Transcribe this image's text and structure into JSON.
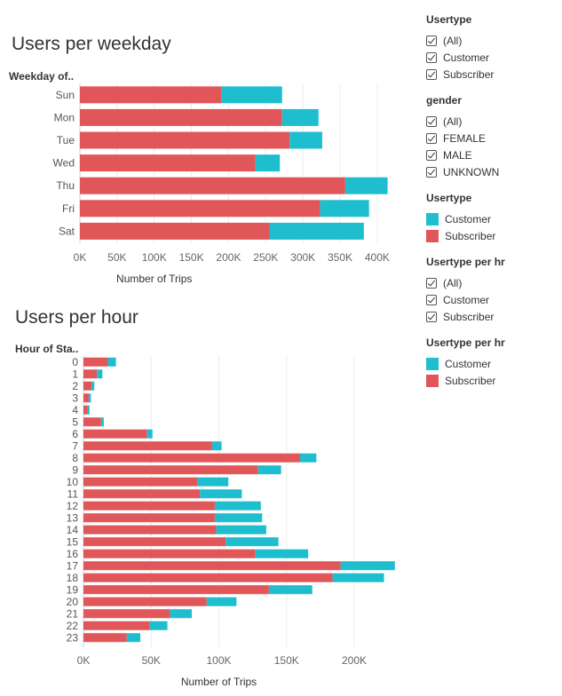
{
  "colors": {
    "subscriber": "#e15759",
    "customer": "#1fbecf",
    "grid": "#ececec",
    "axis": "#666666"
  },
  "legend": [
    {
      "title": "Usertype",
      "kind": "check",
      "items": [
        "(All)",
        "Customer",
        "Subscriber"
      ]
    },
    {
      "title": "gender",
      "kind": "check",
      "items": [
        "(All)",
        "FEMALE",
        "MALE",
        "UNKNOWN"
      ]
    },
    {
      "title": "Usertype",
      "kind": "color",
      "items": [
        {
          "label": "Customer",
          "color": "#1fbecf"
        },
        {
          "label": "Subscriber",
          "color": "#e15759"
        }
      ]
    },
    {
      "title": "Usertype per hr",
      "kind": "check",
      "items": [
        "(All)",
        "Customer",
        "Subscriber"
      ]
    },
    {
      "title": "Usertype per hr",
      "kind": "color",
      "items": [
        {
          "label": "Customer",
          "color": "#1fbecf"
        },
        {
          "label": "Subscriber",
          "color": "#e15759"
        }
      ]
    }
  ],
  "chart_data": [
    {
      "type": "bar",
      "orientation": "horizontal",
      "stacked": true,
      "title": "Users per weekday",
      "row_header": "Weekday of..",
      "xlabel": "Number of Trips",
      "categories": [
        "Sun",
        "Mon",
        "Tue",
        "Wed",
        "Thu",
        "Fri",
        "Sat"
      ],
      "series": [
        {
          "name": "Subscriber",
          "values": [
            190000,
            272000,
            282000,
            236000,
            357000,
            323000,
            255000
          ]
        },
        {
          "name": "Customer",
          "values": [
            82000,
            49000,
            44000,
            33000,
            57000,
            66000,
            127000
          ]
        }
      ],
      "xticks": [
        "0K",
        "50K",
        "100K",
        "150K",
        "200K",
        "250K",
        "300K",
        "350K",
        "400K"
      ],
      "xlim": [
        0,
        430000
      ]
    },
    {
      "type": "bar",
      "orientation": "horizontal",
      "stacked": true,
      "title": "Users per hour",
      "row_header": "Hour of Sta..",
      "xlabel": "Number of Trips",
      "categories": [
        "0",
        "1",
        "2",
        "3",
        "4",
        "5",
        "6",
        "7",
        "8",
        "9",
        "10",
        "11",
        "12",
        "13",
        "14",
        "15",
        "16",
        "17",
        "18",
        "19",
        "20",
        "21",
        "22",
        "23"
      ],
      "series": [
        {
          "name": "Subscriber",
          "values": [
            18000,
            10000,
            6000,
            4000,
            3000,
            13000,
            47000,
            95000,
            160000,
            129000,
            84000,
            86000,
            97000,
            97000,
            98000,
            105000,
            127000,
            190000,
            184000,
            137000,
            91000,
            64000,
            49000,
            32000
          ]
        },
        {
          "name": "Customer",
          "values": [
            6000,
            4000,
            2000,
            1500,
            1500,
            2000,
            4000,
            7000,
            12000,
            17000,
            23000,
            31000,
            34000,
            35000,
            37000,
            39000,
            39000,
            40000,
            38000,
            32000,
            22000,
            16000,
            13000,
            10000
          ]
        }
      ],
      "xticks": [
        "0K",
        "50K",
        "100K",
        "150K",
        "200K"
      ],
      "xlim": [
        0,
        240000
      ]
    }
  ]
}
